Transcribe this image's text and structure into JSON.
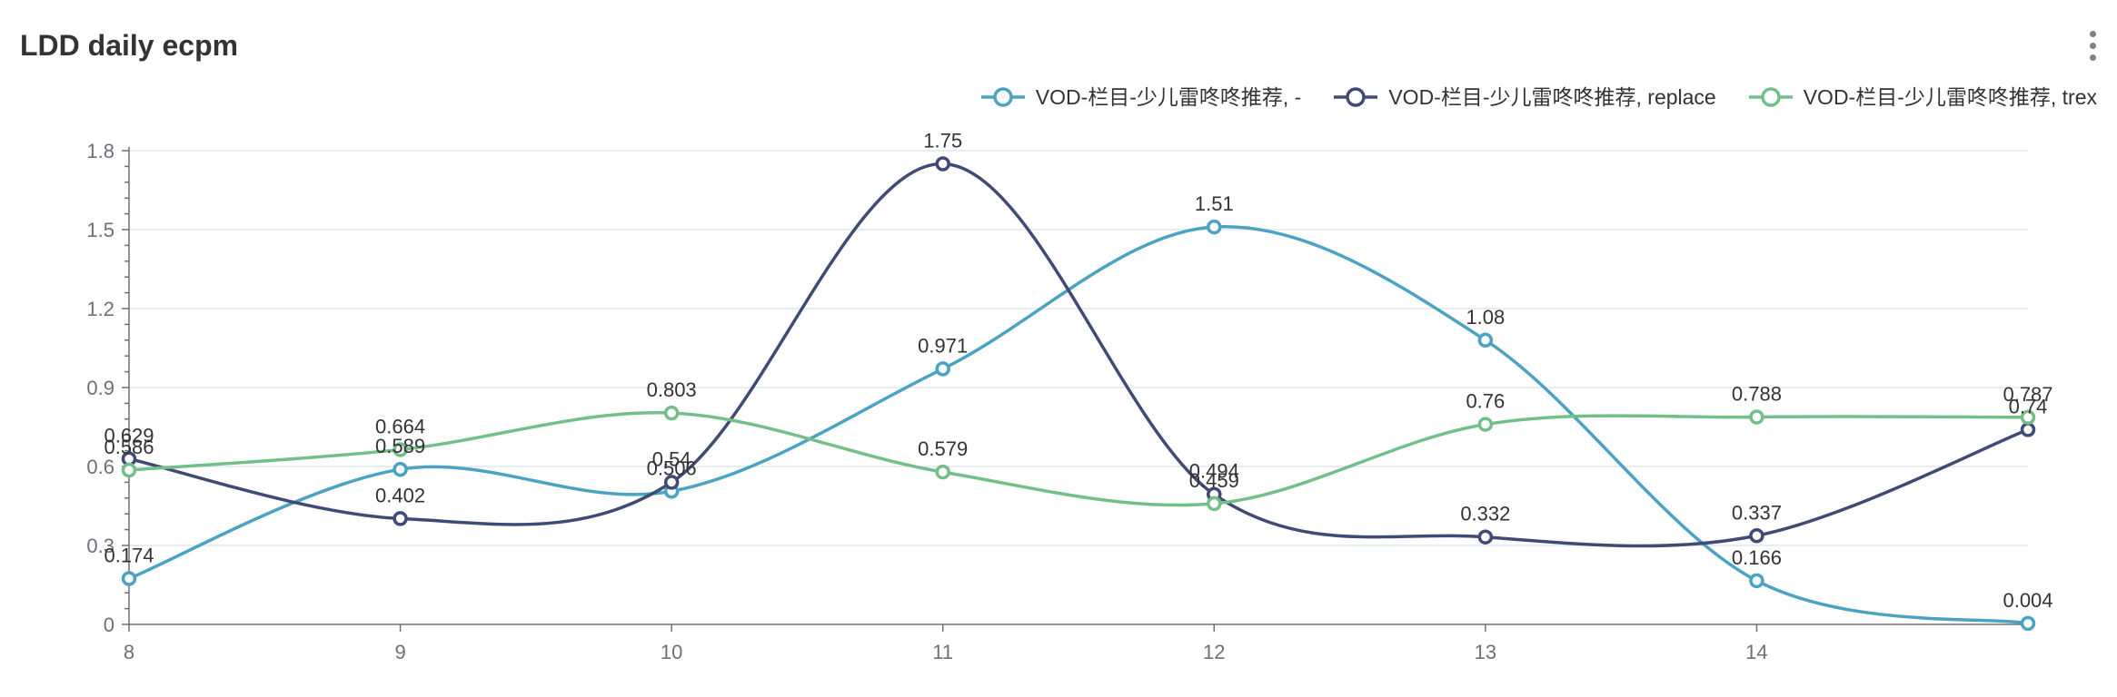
{
  "header": {
    "title": "LDD daily ecpm"
  },
  "toolbar": {
    "more_icon": "vertical-ellipsis-icon"
  },
  "chart_data": {
    "type": "line",
    "title": "LDD daily ecpm",
    "smooth": true,
    "xlabel": "",
    "ylabel": "",
    "x": [
      8,
      9,
      10,
      11,
      12,
      13,
      14,
      15
    ],
    "x_tick_labels": [
      "8",
      "9",
      "10",
      "11",
      "12",
      "13",
      "14"
    ],
    "ylim": [
      0,
      1.8
    ],
    "y_ticks": [
      0,
      0.3,
      0.6,
      0.9,
      1.2,
      1.5,
      1.8
    ],
    "y_tick_labels": [
      "0",
      "0.3",
      "0.6",
      "0.9",
      "1.2",
      "1.5",
      "1.8"
    ],
    "grid": true,
    "legend_position": "top-right",
    "series": [
      {
        "name": "VOD-栏目-少儿雷咚咚推荐, -",
        "color": "#4aa3c2",
        "values": [
          0.174,
          0.589,
          0.506,
          0.971,
          1.51,
          1.08,
          0.166,
          0.004
        ],
        "labels": [
          "0.174",
          "0.589",
          "0.506",
          "0.971",
          "1.51",
          "1.08",
          "0.166",
          "0.004"
        ]
      },
      {
        "name": "VOD-栏目-少儿雷咚咚推荐, replace",
        "color": "#3f4a75",
        "values": [
          0.629,
          0.402,
          0.54,
          1.75,
          0.494,
          0.332,
          0.337,
          0.74
        ],
        "labels": [
          "0.629",
          "0.402",
          "0.54",
          "1.75",
          "0.494",
          "0.332",
          "0.337",
          "0.74"
        ]
      },
      {
        "name": "VOD-栏目-少儿雷咚咚推荐, trex",
        "color": "#72bf8a",
        "values": [
          0.586,
          0.664,
          0.803,
          0.579,
          0.459,
          0.76,
          0.788,
          0.787
        ],
        "labels": [
          "0.586",
          "0.664",
          "0.803",
          "0.579",
          "0.459",
          "0.76",
          "0.788",
          "0.787"
        ]
      }
    ]
  }
}
